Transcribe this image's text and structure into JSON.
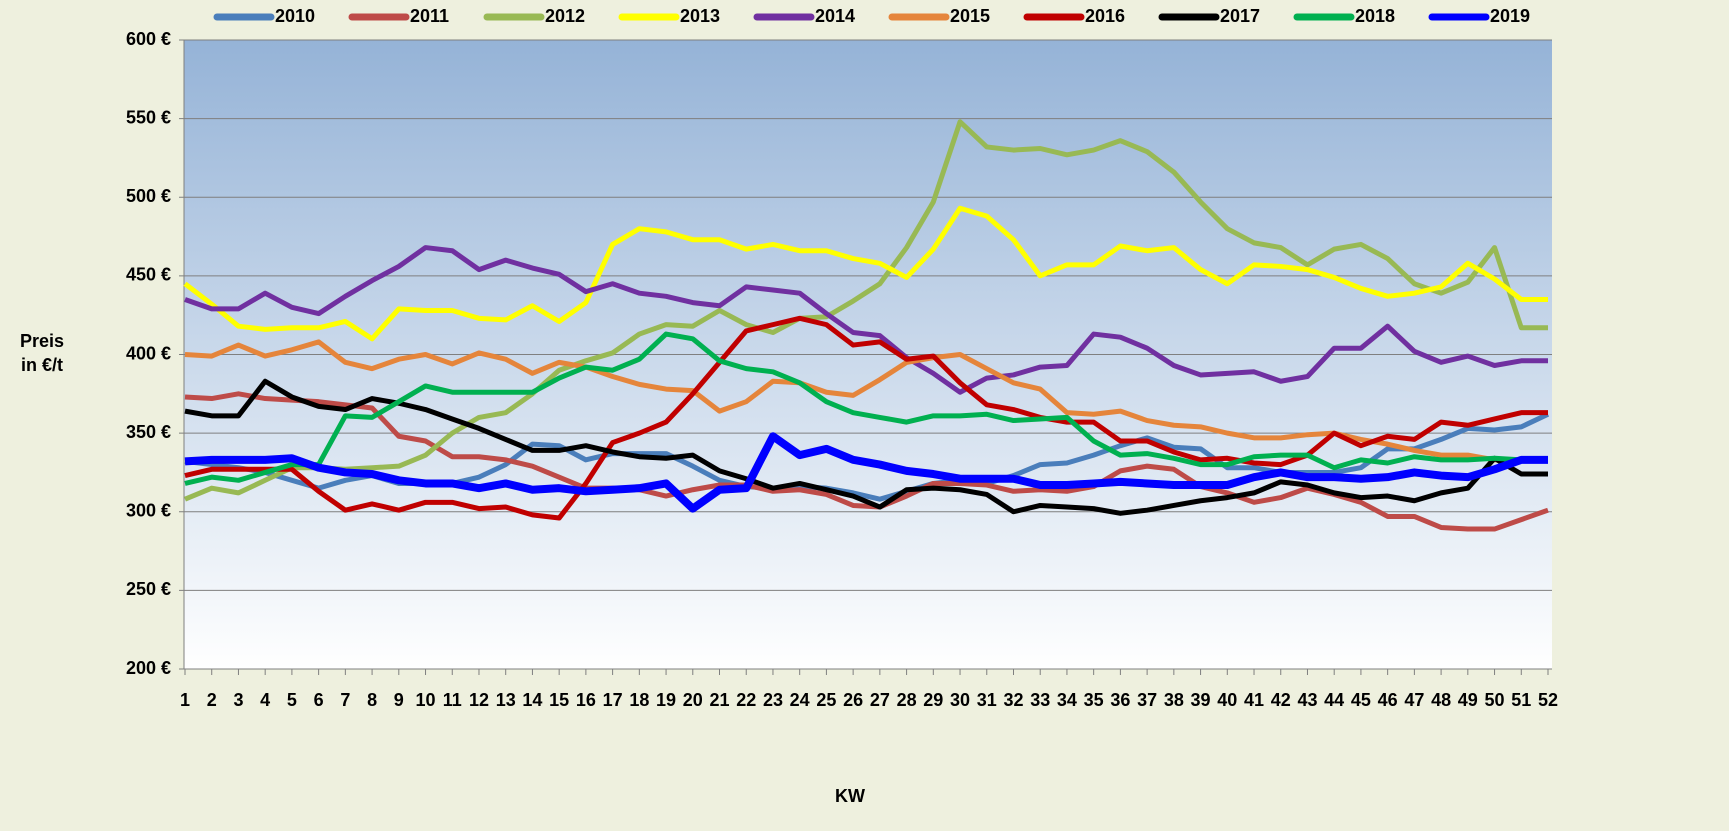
{
  "chart_data": {
    "type": "line",
    "x": [
      1,
      2,
      3,
      4,
      5,
      6,
      7,
      8,
      9,
      10,
      11,
      12,
      13,
      14,
      15,
      16,
      17,
      18,
      19,
      20,
      21,
      22,
      23,
      24,
      25,
      26,
      27,
      28,
      29,
      30,
      31,
      32,
      33,
      34,
      35,
      36,
      37,
      38,
      39,
      40,
      41,
      42,
      43,
      44,
      45,
      46,
      47,
      48,
      49,
      50,
      51,
      52
    ],
    "xlim": [
      1,
      52
    ],
    "xlabel": "KW",
    "ylabel": [
      "Preis",
      "in €/t"
    ],
    "ylim": [
      200,
      600
    ],
    "yticks": [
      {
        "value": 200,
        "label": "200 €"
      },
      {
        "value": 250,
        "label": "250 €"
      },
      {
        "value": 300,
        "label": "300 €"
      },
      {
        "value": 350,
        "label": "350 €"
      },
      {
        "value": 400,
        "label": "400 €"
      },
      {
        "value": 450,
        "label": "450 €"
      },
      {
        "value": 500,
        "label": "500 €"
      },
      {
        "value": 550,
        "label": "550 €"
      },
      {
        "value": 600,
        "label": "600 €"
      }
    ],
    "grid": true,
    "legend": "top",
    "series": [
      {
        "name": "2010",
        "color": "#4a7ebb",
        "values": [
          332,
          330,
          328,
          325,
          320,
          315,
          320,
          323,
          318,
          318,
          318,
          322,
          330,
          343,
          342,
          333,
          337,
          337,
          337,
          329,
          320,
          316,
          315,
          316,
          315,
          312,
          308,
          313,
          318,
          320,
          318,
          323,
          330,
          331,
          336,
          342,
          347,
          341,
          340,
          328,
          328,
          325,
          325,
          325,
          328,
          340,
          340,
          346,
          353,
          352,
          354,
          362
        ]
      },
      {
        "name": "2011",
        "color": "#be4b48",
        "values": [
          373,
          372,
          375,
          372,
          371,
          370,
          368,
          366,
          348,
          345,
          335,
          335,
          333,
          329,
          322,
          315,
          315,
          314,
          310,
          314,
          317,
          317,
          313,
          314,
          311,
          304,
          303,
          310,
          318,
          318,
          317,
          313,
          314,
          313,
          316,
          326,
          329,
          327,
          316,
          312,
          306,
          309,
          315,
          311,
          306,
          297,
          297,
          290,
          289,
          289,
          295,
          301
        ]
      },
      {
        "name": "2012",
        "color": "#98b954",
        "values": [
          308,
          315,
          312,
          320,
          328,
          328,
          327,
          328,
          329,
          336,
          350,
          360,
          363,
          375,
          390,
          396,
          401,
          413,
          419,
          418,
          428,
          419,
          414,
          423,
          424,
          434,
          445,
          468,
          497,
          548,
          532,
          530,
          531,
          527,
          530,
          536,
          529,
          516,
          497,
          480,
          471,
          468,
          457,
          467,
          470,
          461,
          445,
          439,
          446,
          468,
          417,
          417
        ]
      },
      {
        "name": "2013",
        "color": "#ffff00",
        "values": [
          445,
          432,
          418,
          416,
          417,
          417,
          421,
          410,
          429,
          428,
          428,
          423,
          422,
          431,
          421,
          433,
          470,
          480,
          478,
          473,
          473,
          467,
          470,
          466,
          466,
          461,
          458,
          449,
          467,
          493,
          488,
          473,
          450,
          457,
          457,
          469,
          466,
          468,
          454,
          445,
          457,
          456,
          454,
          449,
          442,
          437,
          439,
          443,
          458,
          448,
          435,
          435
        ]
      },
      {
        "name": "2014",
        "color": "#7030a0",
        "values": [
          435,
          429,
          429,
          439,
          430,
          426,
          437,
          447,
          456,
          468,
          466,
          454,
          460,
          455,
          451,
          440,
          445,
          439,
          437,
          433,
          431,
          443,
          441,
          439,
          426,
          414,
          412,
          398,
          388,
          376,
          385,
          387,
          392,
          393,
          413,
          411,
          404,
          393,
          387,
          388,
          389,
          383,
          386,
          404,
          404,
          418,
          402,
          395,
          399,
          393,
          396,
          396
        ]
      },
      {
        "name": "2015",
        "color": "#e5853b",
        "values": [
          400,
          399,
          406,
          399,
          403,
          408,
          395,
          391,
          397,
          400,
          394,
          401,
          397,
          388,
          395,
          392,
          386,
          381,
          378,
          377,
          364,
          370,
          383,
          382,
          376,
          374,
          384,
          395,
          398,
          400,
          391,
          382,
          378,
          363,
          362,
          364,
          358,
          355,
          354,
          350,
          347,
          347,
          349,
          350,
          346,
          343,
          339,
          336,
          336,
          333,
          333,
          333
        ]
      },
      {
        "name": "2016",
        "color": "#c00000",
        "values": [
          323,
          327,
          327,
          327,
          327,
          313,
          301,
          305,
          301,
          306,
          306,
          302,
          303,
          298,
          296,
          318,
          344,
          350,
          357,
          375,
          395,
          415,
          419,
          423,
          419,
          406,
          408,
          397,
          399,
          382,
          368,
          365,
          360,
          357,
          357,
          345,
          345,
          338,
          333,
          334,
          331,
          330,
          336,
          350,
          342,
          348,
          346,
          357,
          355,
          359,
          363,
          363
        ]
      },
      {
        "name": "2017",
        "color": "#000000",
        "values": [
          364,
          361,
          361,
          383,
          373,
          367,
          365,
          372,
          369,
          365,
          359,
          353,
          346,
          339,
          339,
          342,
          338,
          335,
          334,
          336,
          326,
          321,
          315,
          318,
          314,
          310,
          303,
          314,
          315,
          314,
          311,
          300,
          304,
          303,
          302,
          299,
          301,
          304,
          307,
          309,
          312,
          319,
          317,
          312,
          309,
          310,
          307,
          312,
          315,
          334,
          324,
          324
        ]
      },
      {
        "name": "2018",
        "color": "#00b050",
        "values": [
          318,
          322,
          320,
          325,
          330,
          330,
          361,
          360,
          370,
          380,
          376,
          376,
          376,
          376,
          385,
          392,
          390,
          397,
          413,
          410,
          396,
          391,
          389,
          382,
          370,
          363,
          360,
          357,
          361,
          361,
          362,
          358,
          359,
          360,
          345,
          336,
          337,
          334,
          330,
          330,
          335,
          336,
          336,
          328,
          333,
          331,
          335,
          333,
          333,
          334,
          333,
          333
        ]
      },
      {
        "name": "2019",
        "color": "#0000ff",
        "values": [
          332,
          333,
          333,
          333,
          334,
          328,
          325,
          324,
          320,
          318,
          318,
          315,
          318,
          314,
          315,
          313,
          314,
          315,
          318,
          302,
          314,
          315,
          348,
          336,
          340,
          333,
          330,
          326,
          324,
          321,
          321,
          321,
          317,
          317,
          318,
          319,
          318,
          317,
          317,
          317,
          322,
          325,
          322,
          322,
          321,
          322,
          325,
          323,
          322,
          327,
          333,
          333
        ]
      }
    ]
  }
}
